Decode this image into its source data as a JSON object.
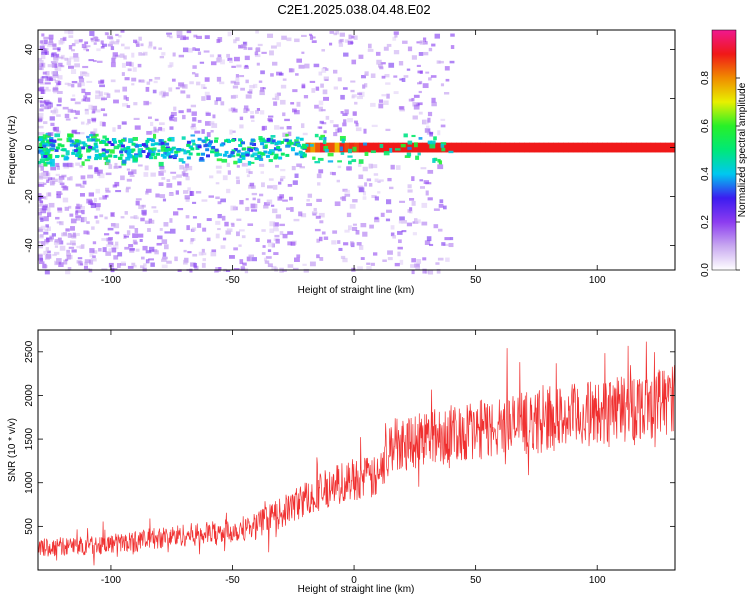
{
  "figure_title": "C2E1.2025.038.04.48.E02",
  "colors": {
    "snr_line": "#f03030",
    "frame": "#000000",
    "colormap": [
      "#ffffff",
      "#c8a8f0",
      "#8c3cf0",
      "#3c1cf0",
      "#00c8f0",
      "#00e878",
      "#28f028",
      "#e8f000",
      "#f08c00",
      "#f01818",
      "#f01890"
    ]
  },
  "chart_data": [
    {
      "type": "heatmap",
      "title": "",
      "xlabel": "Height of straight line (km)",
      "ylabel": "Frequency (Hz)",
      "xlim": [
        -130,
        132
      ],
      "ylim": [
        -50,
        48
      ],
      "xticks": [
        -100,
        -50,
        0,
        50,
        100
      ],
      "yticks": [
        -40,
        -20,
        0,
        20,
        40
      ],
      "grid": false,
      "description_values": {
        "dominant_frequency_hz": 0,
        "band_halfwidth_hz": 2
      },
      "colorbar": {
        "label": "Normalized spectral amplitude",
        "range": [
          0.0,
          1.0
        ],
        "ticks": [
          0.0,
          0.2,
          0.4,
          0.6,
          0.8
        ]
      }
    },
    {
      "type": "line",
      "title": "",
      "xlabel": "Height of straight line (km)",
      "ylabel": "SNR (10 * v/v)",
      "xlim": [
        -130,
        132
      ],
      "ylim": [
        0,
        2750
      ],
      "xticks": [
        -100,
        -50,
        0,
        50,
        100
      ],
      "yticks": [
        500,
        1000,
        1500,
        2000,
        2500
      ],
      "grid": false,
      "series": [
        {
          "x": [
            -130,
            -120,
            -110,
            -100,
            -90,
            -80,
            -70,
            -60,
            -50,
            -40,
            -30,
            -20,
            -10,
            0,
            10,
            12,
            15,
            20,
            30,
            40,
            50,
            60,
            70,
            80,
            90,
            100,
            110,
            120,
            132
          ],
          "values": [
            250,
            270,
            280,
            300,
            330,
            370,
            400,
            420,
            450,
            520,
            650,
            820,
            950,
            1050,
            1050,
            1200,
            1420,
            1480,
            1520,
            1560,
            1600,
            1640,
            1680,
            1720,
            1760,
            1800,
            1850,
            1900,
            1950
          ]
        }
      ]
    }
  ]
}
